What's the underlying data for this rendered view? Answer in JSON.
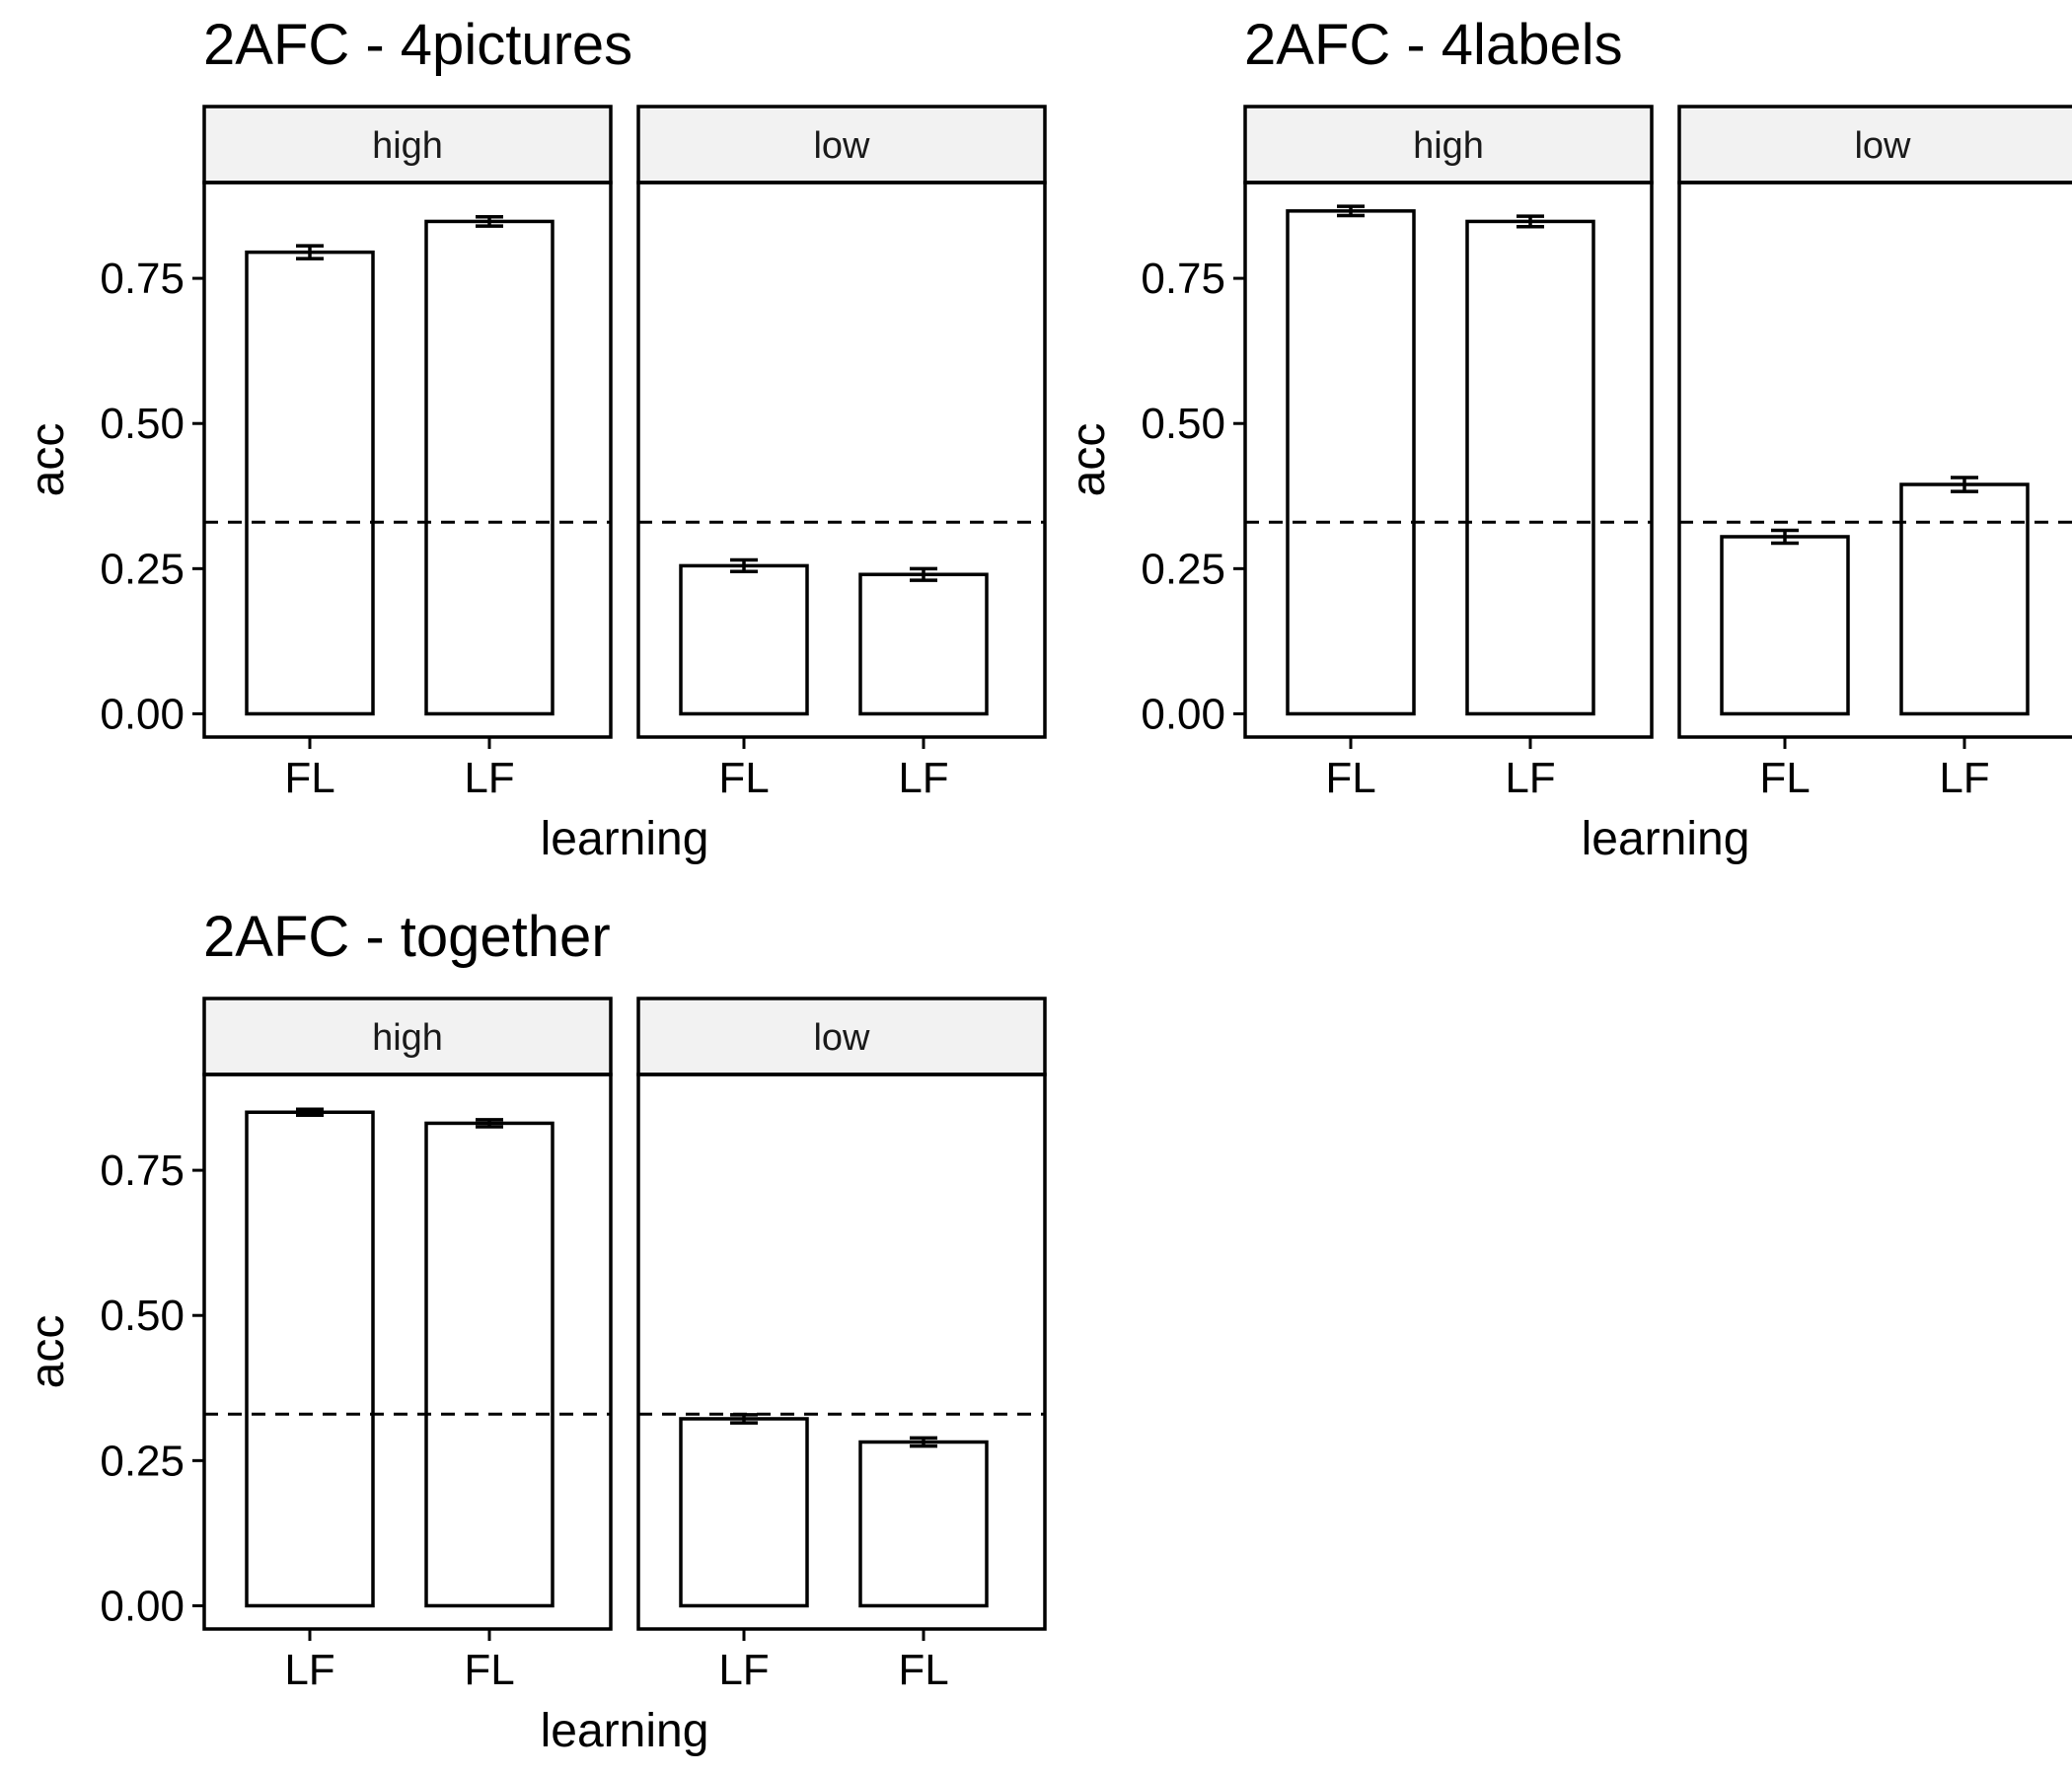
{
  "chart_data": [
    {
      "type": "bar",
      "title": "2AFC - 4pictures",
      "xlabel": "learning",
      "ylabel": "acc",
      "ylim": [
        -0.04,
        0.915
      ],
      "yticks": [
        "0.00",
        "0.25",
        "0.50",
        "0.75"
      ],
      "yticks_values": [
        0,
        0.25,
        0.5,
        0.75
      ],
      "reference_line": 0.33,
      "grid": false,
      "facets": [
        {
          "strip": "high",
          "categories": [
            "FL",
            "LF"
          ],
          "values": [
            0.795,
            0.848
          ],
          "errors": [
            0.011,
            0.008
          ]
        },
        {
          "strip": "low",
          "categories": [
            "FL",
            "LF"
          ],
          "values": [
            0.255,
            0.24
          ],
          "errors": [
            0.01,
            0.01
          ]
        }
      ]
    },
    {
      "type": "bar",
      "title": "2AFC - 4labels",
      "xlabel": "learning",
      "ylabel": "acc",
      "ylim": [
        -0.04,
        0.915
      ],
      "yticks": [
        "0.00",
        "0.25",
        "0.50",
        "0.75"
      ],
      "yticks_values": [
        0,
        0.25,
        0.5,
        0.75
      ],
      "reference_line": 0.33,
      "grid": false,
      "facets": [
        {
          "strip": "high",
          "categories": [
            "FL",
            "LF"
          ],
          "values": [
            0.866,
            0.848
          ],
          "errors": [
            0.008,
            0.009
          ]
        },
        {
          "strip": "low",
          "categories": [
            "FL",
            "LF"
          ],
          "values": [
            0.305,
            0.395
          ],
          "errors": [
            0.011,
            0.012
          ]
        }
      ]
    },
    {
      "type": "bar",
      "title": "2AFC - together",
      "xlabel": "learning",
      "ylabel": "acc",
      "ylim": [
        -0.04,
        0.915
      ],
      "yticks": [
        "0.00",
        "0.25",
        "0.50",
        "0.75"
      ],
      "yticks_values": [
        0,
        0.25,
        0.5,
        0.75
      ],
      "reference_line": 0.33,
      "grid": false,
      "facets": [
        {
          "strip": "high",
          "categories": [
            "LF",
            "FL"
          ],
          "values": [
            0.85,
            0.831
          ],
          "errors": [
            0.005,
            0.006
          ]
        },
        {
          "strip": "low",
          "categories": [
            "LF",
            "FL"
          ],
          "values": [
            0.322,
            0.282
          ],
          "errors": [
            0.007,
            0.007
          ]
        }
      ]
    }
  ]
}
